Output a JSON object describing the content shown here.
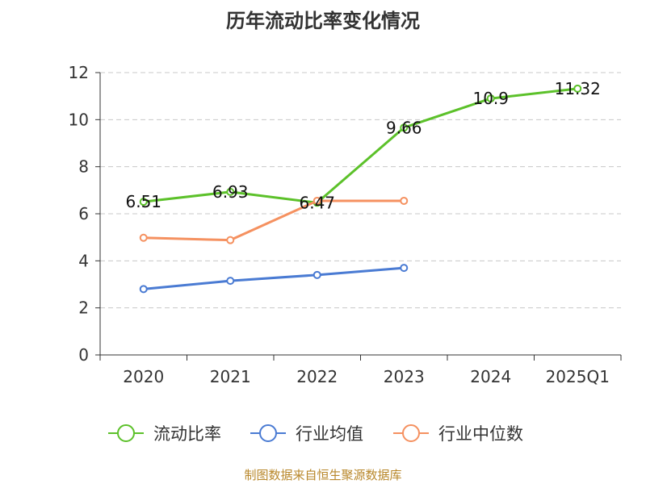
{
  "chart_data": {
    "type": "line",
    "title": "历年流动比率变化情况",
    "categories": [
      "2020",
      "2021",
      "2022",
      "2023",
      "2024",
      "2025Q1"
    ],
    "ylim": [
      0,
      12
    ],
    "yticks": [
      0,
      2,
      4,
      6,
      8,
      10,
      12
    ],
    "ytick_labels": [
      "0",
      "2",
      "4",
      "6",
      "8",
      "10",
      "12"
    ],
    "grid": true,
    "legend_position": "bottom",
    "series": [
      {
        "name": "流动比率",
        "color": "#5cc12a",
        "values": [
          6.51,
          6.93,
          6.47,
          9.66,
          10.9,
          11.32
        ],
        "data_labels": [
          "6.51",
          "6.93",
          "6.47",
          "9.66",
          "10.9",
          "11.32"
        ]
      },
      {
        "name": "行业均值",
        "color": "#4a7bd3",
        "values": [
          2.8,
          3.15,
          3.4,
          3.7,
          null,
          null
        ]
      },
      {
        "name": "行业中位数",
        "color": "#f59160",
        "values": [
          4.98,
          4.88,
          6.55,
          6.55,
          null,
          null
        ]
      }
    ]
  },
  "source_note": "制图数据来自恒生聚源数据库"
}
